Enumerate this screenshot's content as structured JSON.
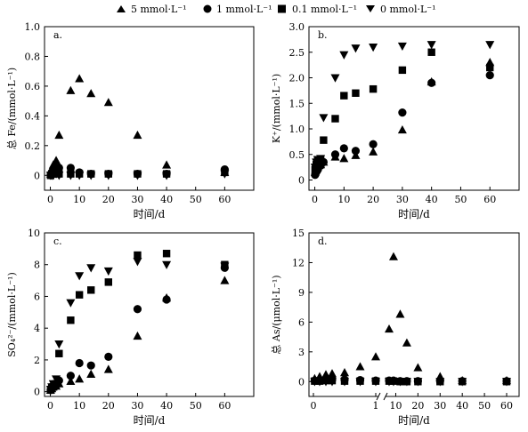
{
  "legend": {
    "entries": [
      {
        "label": "5 mmol·L⁻¹",
        "marker": "triangle-up"
      },
      {
        "label": "1 mmol·L⁻¹",
        "marker": "circle"
      },
      {
        "label": "0.1 mmol·L⁻¹",
        "marker": "square"
      },
      {
        "label": "0 mmol·L⁻¹",
        "marker": "triangle-down"
      }
    ]
  },
  "colors": {
    "marker": "#000000",
    "axis": "#000000",
    "background": "#ffffff"
  },
  "chart_data": [
    {
      "type": "scatter",
      "panel_label": "a.",
      "xlabel": "时间/d",
      "ylabel": "总 Fe/(mmol·L⁻¹)",
      "xlim": [
        -2,
        70
      ],
      "ylim": [
        -0.1,
        1.0
      ],
      "xticks": [
        0,
        10,
        20,
        30,
        40,
        50,
        60
      ],
      "yticks": [
        0,
        0.2,
        0.4,
        0.6,
        0.8,
        1.0
      ],
      "ytick_labels": [
        "0",
        "0.2",
        "0.4",
        "0.6",
        "0.8",
        "1.0"
      ],
      "series": [
        {
          "name": "5 mmol·L⁻¹",
          "marker": "triangle-up",
          "x": [
            0.1,
            0.5,
            1,
            2,
            3,
            7,
            10,
            14,
            20,
            30,
            40,
            60
          ],
          "y": [
            0.01,
            0.03,
            0.07,
            0.1,
            0.27,
            0.57,
            0.65,
            0.55,
            0.49,
            0.27,
            0.07,
            0.02
          ]
        },
        {
          "name": "1 mmol·L⁻¹",
          "marker": "circle",
          "x": [
            0.1,
            0.5,
            1,
            2,
            3,
            7,
            10,
            14,
            20,
            30,
            40,
            60
          ],
          "y": [
            0.0,
            0.02,
            0.04,
            0.05,
            0.05,
            0.05,
            0.02,
            0.01,
            0.01,
            0.01,
            0.01,
            0.04
          ]
        },
        {
          "name": "0.1 mmol·L⁻¹",
          "marker": "square",
          "x": [
            0.1,
            0.5,
            1,
            2,
            3,
            7,
            10,
            14,
            20,
            30,
            40,
            60
          ],
          "y": [
            0.0,
            0.01,
            0.01,
            0.02,
            0.01,
            0.01,
            0.01,
            0.01,
            0.01,
            0.01,
            0.01,
            0.02
          ]
        },
        {
          "name": "0 mmol·L⁻¹",
          "marker": "triangle-down",
          "x": [
            0.1,
            0.5,
            1,
            2,
            3,
            7,
            10,
            14,
            20,
            30,
            40,
            60
          ],
          "y": [
            0.0,
            0.0,
            0.0,
            0.01,
            0.0,
            0.0,
            0.0,
            0.0,
            0.0,
            0.0,
            0.0,
            0.01
          ]
        }
      ]
    },
    {
      "type": "scatter",
      "panel_label": "b.",
      "xlabel": "时间/d",
      "ylabel": "K⁺/(mmol·L⁻¹)",
      "xlim": [
        -2,
        70
      ],
      "ylim": [
        -0.2,
        3.0
      ],
      "xticks": [
        0,
        10,
        20,
        30,
        40,
        50,
        60
      ],
      "yticks": [
        0,
        0.5,
        1.0,
        1.5,
        2.0,
        2.5,
        3.0
      ],
      "ytick_labels": [
        "0",
        "0.5",
        "1.0",
        "1.5",
        "2.0",
        "2.5",
        "3.0"
      ],
      "series": [
        {
          "name": "5 mmol·L⁻¹",
          "marker": "triangle-up",
          "x": [
            0.1,
            0.5,
            1,
            2,
            3,
            7,
            10,
            14,
            20,
            30,
            40,
            60
          ],
          "y": [
            0.15,
            0.2,
            0.25,
            0.3,
            0.35,
            0.45,
            0.42,
            0.48,
            0.55,
            0.98,
            1.92,
            2.3
          ]
        },
        {
          "name": "1 mmol·L⁻¹",
          "marker": "circle",
          "x": [
            0.1,
            0.5,
            1,
            2,
            3,
            7,
            10,
            14,
            20,
            30,
            40,
            60
          ],
          "y": [
            0.1,
            0.15,
            0.2,
            0.28,
            0.35,
            0.5,
            0.62,
            0.57,
            0.7,
            1.32,
            1.9,
            2.05
          ]
        },
        {
          "name": "0.1 mmol·L⁻¹",
          "marker": "square",
          "x": [
            0.1,
            0.5,
            1,
            2,
            3,
            7,
            10,
            14,
            20,
            30,
            40,
            60
          ],
          "y": [
            0.2,
            0.3,
            0.38,
            0.4,
            0.78,
            1.2,
            1.65,
            1.7,
            1.78,
            2.15,
            2.5,
            2.2
          ]
        },
        {
          "name": "0 mmol·L⁻¹",
          "marker": "triangle-down",
          "x": [
            0.1,
            0.5,
            1,
            2,
            3,
            7,
            10,
            14,
            20,
            30,
            40,
            60
          ],
          "y": [
            0.25,
            0.35,
            0.4,
            0.42,
            1.22,
            2.0,
            2.45,
            2.58,
            2.6,
            2.62,
            2.65,
            2.65
          ]
        }
      ]
    },
    {
      "type": "scatter",
      "panel_label": "c.",
      "xlabel": "时间/d",
      "ylabel": "SO₄²⁻/(mmol·L⁻¹)",
      "xlim": [
        -2,
        70
      ],
      "ylim": [
        -0.3,
        10
      ],
      "xticks": [
        0,
        10,
        20,
        30,
        40,
        50,
        60
      ],
      "yticks": [
        0,
        2,
        4,
        6,
        8,
        10
      ],
      "ytick_labels": [
        "0",
        "2",
        "4",
        "6",
        "8",
        "10"
      ],
      "series": [
        {
          "name": "5 mmol·L⁻¹",
          "marker": "triangle-up",
          "x": [
            0.1,
            0.5,
            1,
            2,
            3,
            7,
            10,
            14,
            20,
            30,
            40,
            60
          ],
          "y": [
            0.1,
            0.2,
            0.3,
            0.35,
            0.5,
            0.65,
            0.8,
            1.1,
            1.4,
            3.5,
            5.9,
            7.0
          ]
        },
        {
          "name": "1 mmol·L⁻¹",
          "marker": "circle",
          "x": [
            0.1,
            0.5,
            1,
            2,
            3,
            7,
            10,
            14,
            20,
            30,
            40,
            60
          ],
          "y": [
            0.1,
            0.25,
            0.4,
            0.5,
            0.7,
            1.0,
            1.8,
            1.65,
            2.2,
            5.2,
            5.8,
            7.8
          ]
        },
        {
          "name": "0.1 mmol·L⁻¹",
          "marker": "square",
          "x": [
            0.1,
            0.5,
            1,
            2,
            3,
            7,
            10,
            14,
            20,
            30,
            40,
            60
          ],
          "y": [
            0.1,
            0.2,
            0.3,
            0.5,
            2.4,
            4.5,
            6.1,
            6.4,
            6.9,
            8.6,
            8.7,
            8.0
          ]
        },
        {
          "name": "0 mmol·L⁻¹",
          "marker": "triangle-down",
          "x": [
            0.1,
            0.5,
            1,
            2,
            3,
            7,
            10,
            14,
            20,
            30,
            40,
            60
          ],
          "y": [
            0.15,
            0.3,
            0.5,
            0.8,
            3.0,
            5.6,
            7.3,
            7.8,
            7.6,
            8.2,
            8.0,
            7.9
          ]
        }
      ]
    },
    {
      "type": "scatter",
      "panel_label": "d.",
      "xlabel": "时间/d",
      "ylabel": "总 As/(μmol·L⁻¹)",
      "x_axis_break": true,
      "xlim": [
        -0.3,
        63
      ],
      "ylim": [
        -1.5,
        15
      ],
      "xticks": [
        0,
        1,
        10,
        20,
        30,
        40,
        50,
        60
      ],
      "yticks": [
        0,
        3,
        6,
        9,
        12,
        15
      ],
      "ytick_labels": [
        "0",
        "3",
        "6",
        "9",
        "12",
        "15"
      ],
      "series": [
        {
          "name": "5 mmol·L⁻¹",
          "marker": "triangle-up",
          "x": [
            0.02,
            0.1,
            0.2,
            0.3,
            0.5,
            0.75,
            1,
            7,
            9,
            12,
            15,
            20,
            30,
            40,
            60
          ],
          "y": [
            0.3,
            0.5,
            0.7,
            0.8,
            0.9,
            1.5,
            2.5,
            5.3,
            12.6,
            6.8,
            3.9,
            1.4,
            0.5,
            0.1,
            0.1
          ]
        },
        {
          "name": "1 mmol·L⁻¹",
          "marker": "circle",
          "x": [
            0.02,
            0.1,
            0.2,
            0.3,
            0.5,
            0.75,
            1,
            7,
            9,
            12,
            15,
            20,
            30,
            40,
            60
          ],
          "y": [
            0.1,
            0.15,
            0.2,
            0.2,
            0.2,
            0.15,
            0.1,
            0.1,
            0.1,
            0.05,
            0.05,
            0.05,
            0.05,
            0.05,
            0.05
          ]
        },
        {
          "name": "0.1 mmol·L⁻¹",
          "marker": "square",
          "x": [
            0.02,
            0.1,
            0.2,
            0.3,
            0.5,
            0.75,
            1,
            7,
            9,
            12,
            15,
            20,
            30,
            40,
            60
          ],
          "y": [
            0.05,
            0.05,
            0.1,
            0.1,
            0.05,
            0.05,
            0.05,
            0.05,
            0.05,
            0.0,
            0.0,
            0.0,
            0.0,
            0.0,
            0.0
          ]
        },
        {
          "name": "0 mmol·L⁻¹",
          "marker": "triangle-down",
          "x": [
            0.02,
            0.1,
            0.2,
            0.3,
            0.5,
            0.75,
            1,
            7,
            9,
            12,
            15,
            20,
            30,
            40,
            60
          ],
          "y": [
            0.0,
            0.0,
            0.0,
            0.0,
            0.0,
            0.0,
            0.0,
            0.0,
            0.0,
            0.0,
            0.0,
            0.0,
            0.0,
            0.0,
            0.0
          ]
        }
      ]
    }
  ]
}
